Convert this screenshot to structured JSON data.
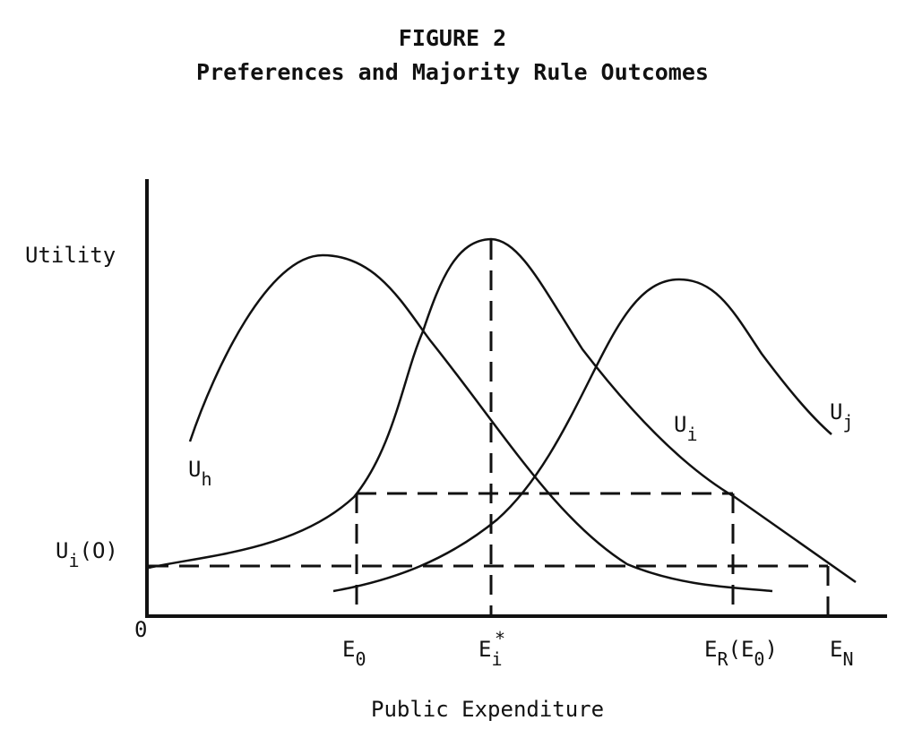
{
  "figure_number": "FIGURE 2",
  "chart_data": {
    "type": "line",
    "title": "Preferences and Majority Rule Outcomes",
    "xlabel": "Public Expenditure",
    "ylabel": "Utility",
    "origin_label": "0",
    "grid": false,
    "legend": "none",
    "series": [
      {
        "name": "U_h",
        "label_main": "U",
        "label_sub": "h",
        "peak_x": "left of E_0"
      },
      {
        "name": "U_i",
        "label_main": "U",
        "label_sub": "i",
        "peak_x": "E_i*"
      },
      {
        "name": "U_j",
        "label_main": "U",
        "label_sub": "j",
        "peak_x": "right of E_i*"
      }
    ],
    "x_ticks": [
      {
        "main": "E",
        "sub": "0",
        "tail": ""
      },
      {
        "main": "E",
        "sub": "i",
        "sup": "*",
        "tail": ""
      },
      {
        "main": "E",
        "sub": "R",
        "tail": "(E",
        "sub2": "0",
        "tail2": ")"
      },
      {
        "main": "E",
        "sub": "N",
        "tail": ""
      }
    ],
    "y_ticks": [
      {
        "main": "U",
        "sub": "i",
        "tail": "(O)"
      }
    ],
    "reference_lines": [
      "U_i(O) horizontal dashed level",
      "level of U_i at E_0 and E_R(E_0) dashed",
      "dashed verticals at E_0, E_i*, E_R(E_0), E_N"
    ]
  }
}
